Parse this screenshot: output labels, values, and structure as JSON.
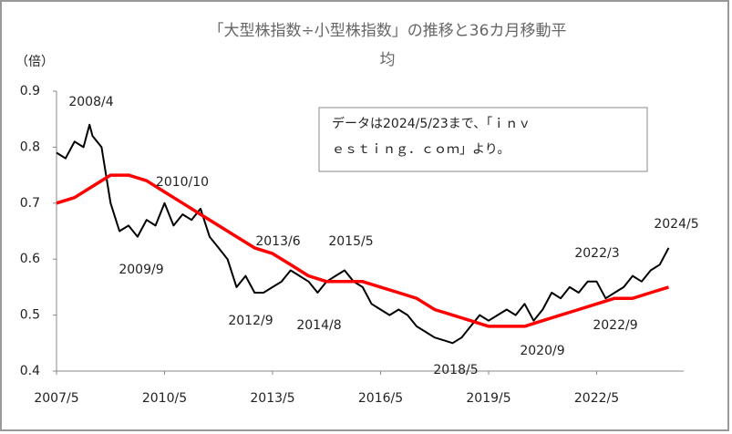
{
  "chart_data": {
    "type": "line",
    "title": [
      "「大型株指数÷小型株指数」の推移と36カ月移動平",
      "均"
    ],
    "y_label": "（倍）",
    "note": [
      "データは2024/5/23まで、「ｉｎｖ",
      "ｅｓｔｉｎｇ．ｃｏｍ」より。"
    ],
    "annotations": [
      "2008/4",
      "2010/10",
      "2009/9",
      "2013/6",
      "2015/5",
      "2012/9",
      "2014/8",
      "2018/5",
      "2020/9",
      "2022/3",
      "2022/9",
      "2024/5"
    ],
    "xlim": [
      "2007/5",
      "2024/10"
    ],
    "xticks": [
      "2007/5",
      "2010/5",
      "2013/5",
      "2016/5",
      "2019/5",
      "2022/5"
    ],
    "ylim": [
      0.4,
      0.9
    ],
    "yticks": [
      0.4,
      0.5,
      0.6,
      0.7,
      0.8,
      0.9
    ],
    "series": [
      {
        "color": "#000000",
        "x": [
          "2007/5",
          "2007/8",
          "2007/11",
          "2008/2",
          "2008/4",
          "2008/5",
          "2008/8",
          "2008/11",
          "2009/2",
          "2009/5",
          "2009/8",
          "2009/11",
          "2010/2",
          "2010/5",
          "2010/8",
          "2010/11",
          "2011/2",
          "2011/5",
          "2011/8",
          "2011/11",
          "2012/2",
          "2012/5",
          "2012/8",
          "2012/11",
          "2013/2",
          "2013/5",
          "2013/8",
          "2013/11",
          "2014/2",
          "2014/5",
          "2014/8",
          "2014/11",
          "2015/2",
          "2015/5",
          "2015/8",
          "2015/11",
          "2016/2",
          "2016/5",
          "2016/8",
          "2016/11",
          "2017/2",
          "2017/5",
          "2017/8",
          "2017/11",
          "2018/2",
          "2018/5",
          "2018/8",
          "2018/11",
          "2019/2",
          "2019/5",
          "2019/8",
          "2019/11",
          "2020/2",
          "2020/5",
          "2020/8",
          "2020/11",
          "2021/2",
          "2021/5",
          "2021/8",
          "2021/11",
          "2022/2",
          "2022/5",
          "2022/8",
          "2022/11",
          "2023/2",
          "2023/5",
          "2023/8",
          "2023/11",
          "2024/2",
          "2024/5"
        ],
        "values": [
          0.79,
          0.78,
          0.81,
          0.8,
          0.84,
          0.82,
          0.8,
          0.7,
          0.65,
          0.66,
          0.64,
          0.67,
          0.66,
          0.7,
          0.66,
          0.68,
          0.67,
          0.69,
          0.64,
          0.62,
          0.6,
          0.55,
          0.57,
          0.54,
          0.54,
          0.55,
          0.56,
          0.58,
          0.57,
          0.56,
          0.54,
          0.56,
          0.57,
          0.58,
          0.56,
          0.55,
          0.52,
          0.51,
          0.5,
          0.51,
          0.5,
          0.48,
          0.47,
          0.46,
          0.455,
          0.45,
          0.46,
          0.48,
          0.5,
          0.49,
          0.5,
          0.51,
          0.5,
          0.52,
          0.49,
          0.51,
          0.54,
          0.53,
          0.55,
          0.54,
          0.56,
          0.56,
          0.53,
          0.54,
          0.55,
          0.57,
          0.56,
          0.58,
          0.59,
          0.62
        ]
      },
      {
        "color": "#ff0000",
        "x": [
          "2007/5",
          "2007/11",
          "2008/5",
          "2008/11",
          "2009/5",
          "2009/11",
          "2010/5",
          "2010/11",
          "2011/5",
          "2011/11",
          "2012/5",
          "2012/11",
          "2013/5",
          "2013/11",
          "2014/5",
          "2014/11",
          "2015/5",
          "2015/11",
          "2016/5",
          "2016/11",
          "2017/5",
          "2017/11",
          "2018/5",
          "2018/11",
          "2019/5",
          "2019/11",
          "2020/5",
          "2020/11",
          "2021/5",
          "2021/11",
          "2022/5",
          "2022/11",
          "2023/5",
          "2023/11",
          "2024/5"
        ],
        "values": [
          0.7,
          0.71,
          0.73,
          0.75,
          0.75,
          0.74,
          0.72,
          0.7,
          0.68,
          0.66,
          0.64,
          0.62,
          0.61,
          0.59,
          0.57,
          0.56,
          0.56,
          0.56,
          0.55,
          0.54,
          0.53,
          0.51,
          0.5,
          0.49,
          0.48,
          0.48,
          0.48,
          0.49,
          0.5,
          0.51,
          0.52,
          0.53,
          0.53,
          0.54,
          0.55
        ]
      }
    ]
  }
}
